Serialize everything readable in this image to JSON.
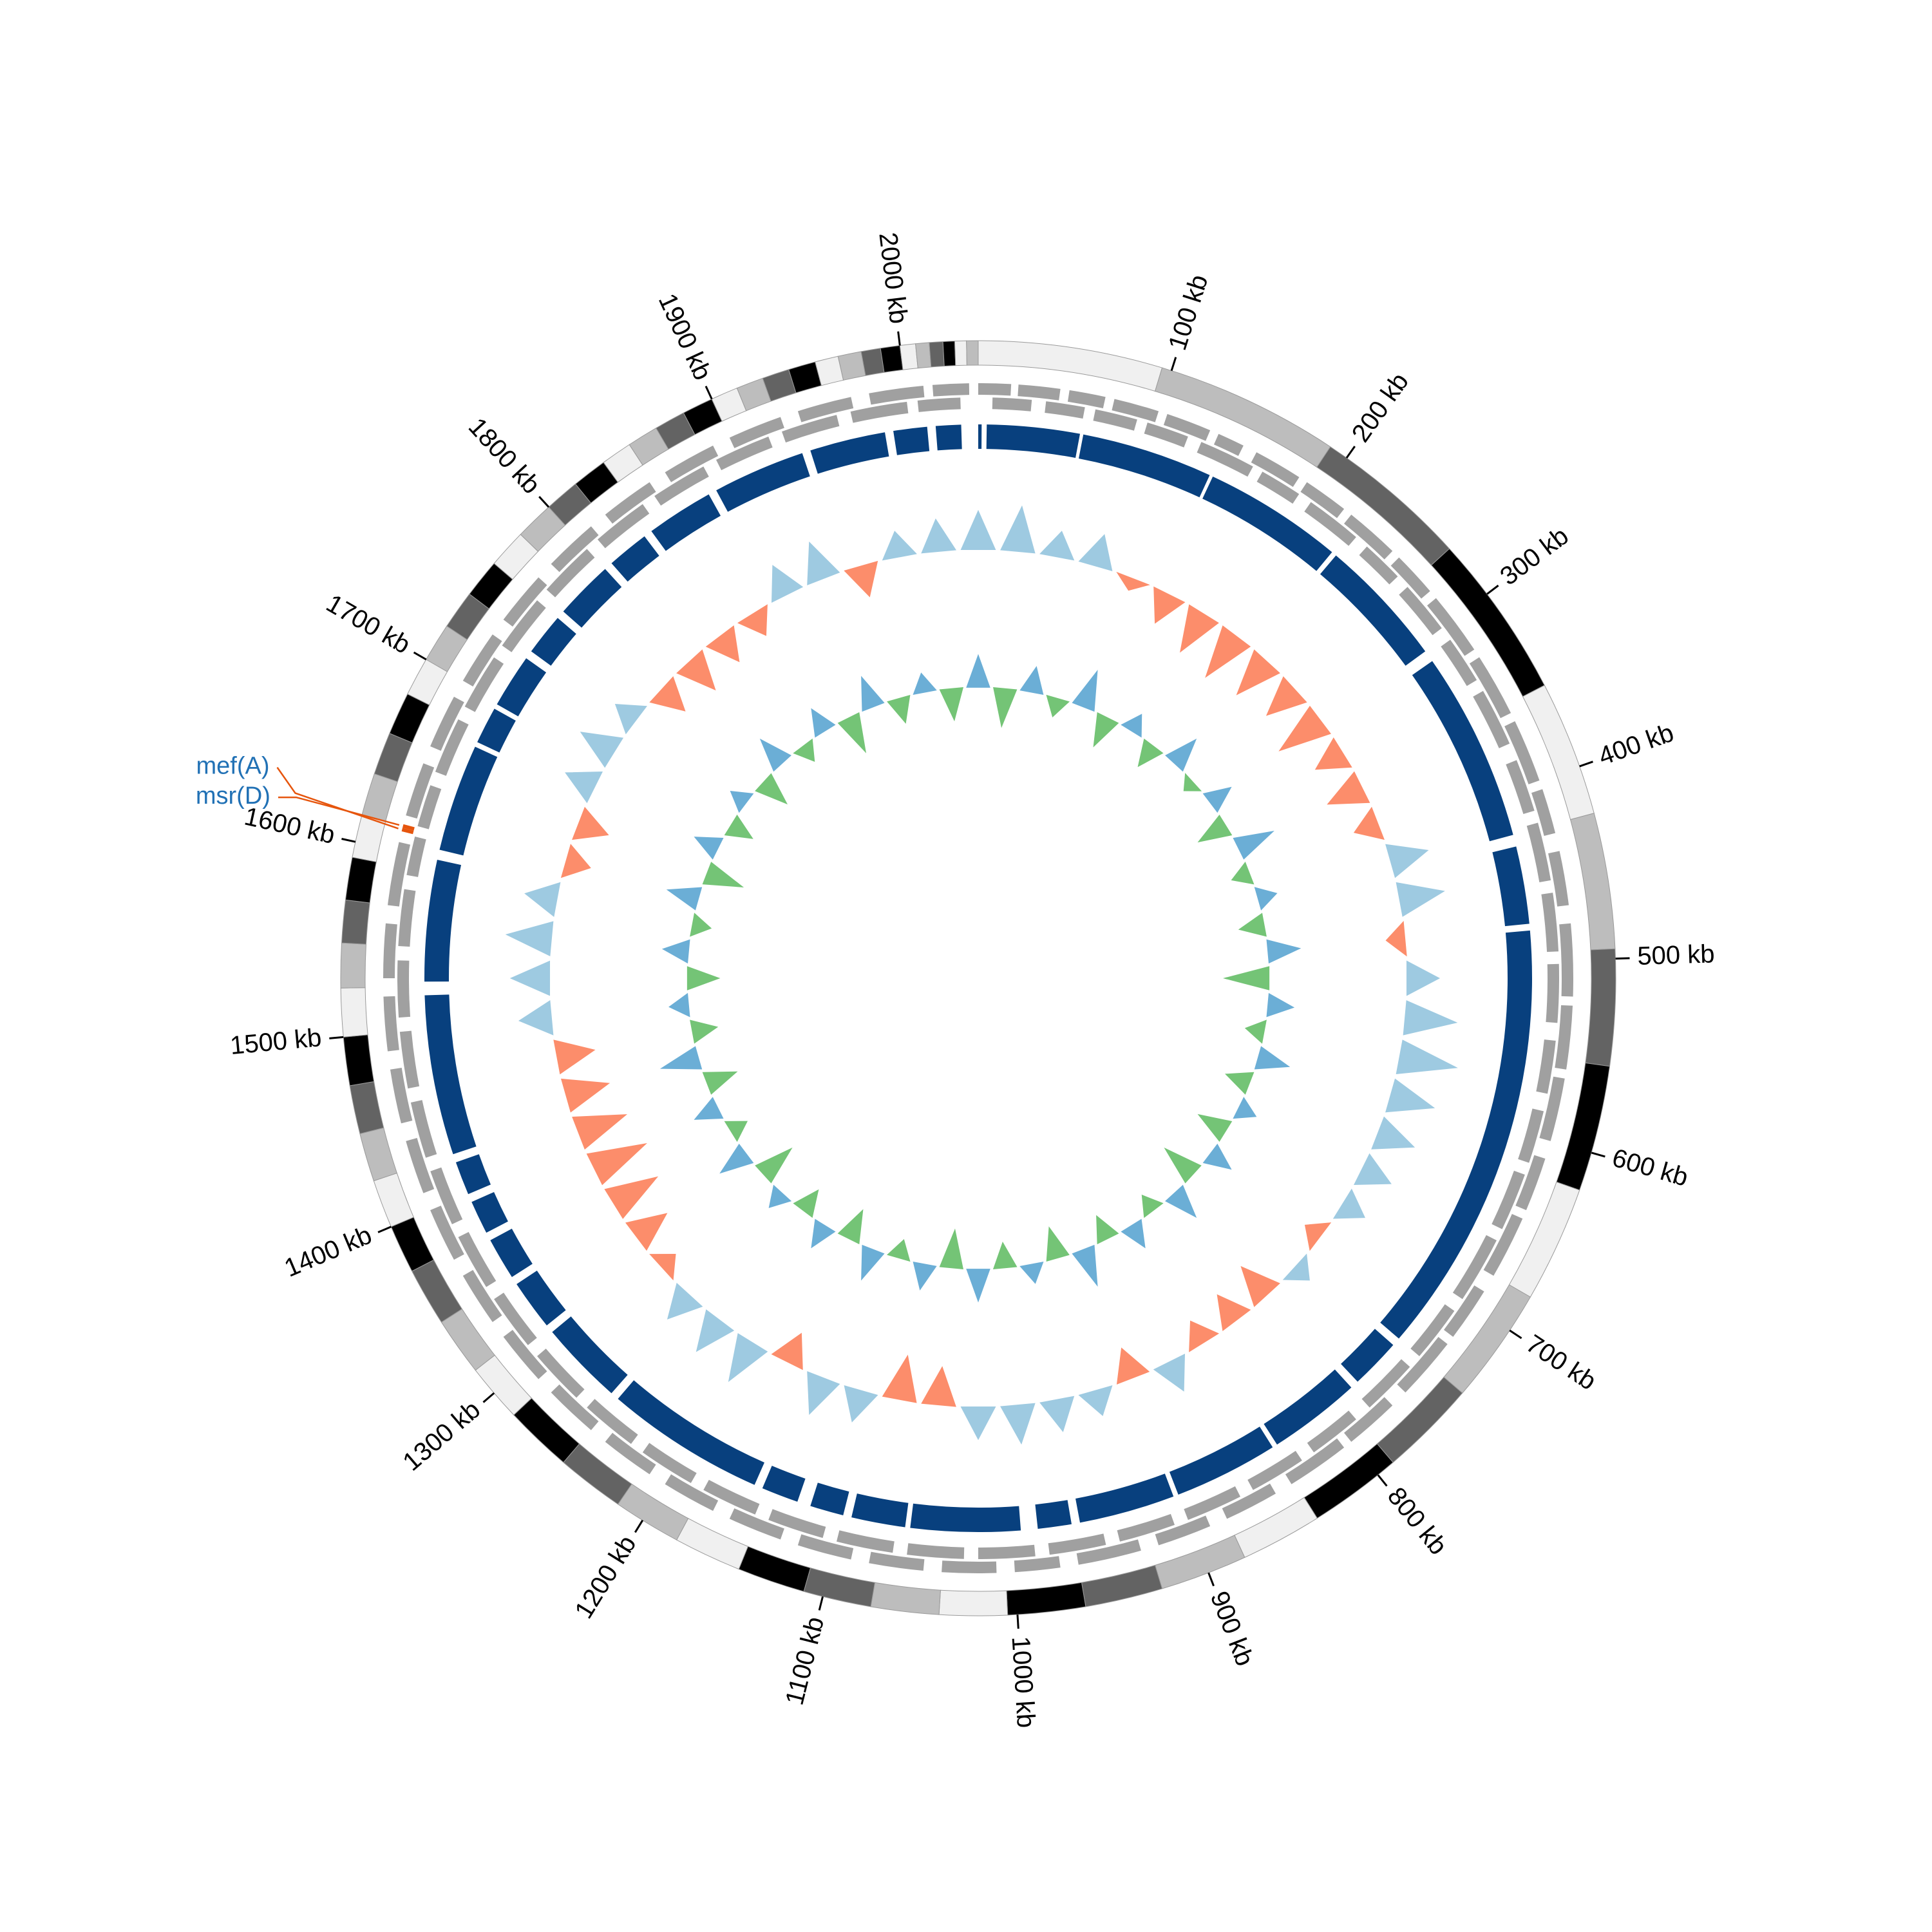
{
  "chart_data": {
    "type": "circular_genome",
    "xlim": [
      0,
      2040
    ],
    "xticks": [
      {
        "value": 100,
        "label": "100 kb"
      },
      {
        "value": 200,
        "label": "200 kb"
      },
      {
        "value": 300,
        "label": "300 kb"
      },
      {
        "value": 400,
        "label": "400 kb"
      },
      {
        "value": 500,
        "label": "500 kb"
      },
      {
        "value": 600,
        "label": "600 kb"
      },
      {
        "value": 700,
        "label": "700 kb"
      },
      {
        "value": 800,
        "label": "800 kb"
      },
      {
        "value": 900,
        "label": "900 kb"
      },
      {
        "value": 1000,
        "label": "1000 kb"
      },
      {
        "value": 1100,
        "label": "1100 kb"
      },
      {
        "value": 1200,
        "label": "1200 kb"
      },
      {
        "value": 1300,
        "label": "1300 kb"
      },
      {
        "value": 1400,
        "label": "1400 kb"
      },
      {
        "value": 1500,
        "label": "1500 kb"
      },
      {
        "value": 1600,
        "label": "1600 kb"
      },
      {
        "value": 1700,
        "label": "1700 kb"
      },
      {
        "value": 1800,
        "label": "1800 kb"
      },
      {
        "value": 1900,
        "label": "1900 kb"
      },
      {
        "value": 2000,
        "label": "2000 kb"
      }
    ],
    "contigs": {
      "ends": [
        95,
        190,
        270,
        355,
        425,
        495,
        555,
        620,
        680,
        740,
        790,
        838,
        880,
        925,
        965,
        1005,
        1040,
        1075,
        1110,
        1145,
        1180,
        1215,
        1250,
        1285,
        1315,
        1345,
        1375,
        1400,
        1425,
        1450,
        1475,
        1500,
        1525,
        1548,
        1570,
        1592,
        1614,
        1636,
        1658,
        1680,
        1700,
        1720,
        1740,
        1760,
        1780,
        1800,
        1818,
        1836,
        1852,
        1868,
        1884,
        1900,
        1914,
        1928,
        1942,
        1956,
        1968,
        1980,
        1990,
        2000,
        2008,
        2015,
        2022,
        2028,
        2034,
        2040
      ],
      "colors": [
        "#f0f0f0",
        "#bdbdbd",
        "#636363",
        "#000000"
      ]
    },
    "genes": {
      "color": "#a0a0a0",
      "forward": [
        [
          0,
          18
        ],
        [
          22,
          45
        ],
        [
          50,
          70
        ],
        [
          75,
          100
        ],
        [
          105,
          130
        ],
        [
          135,
          150
        ],
        [
          158,
          185
        ],
        [
          190,
          215
        ],
        [
          220,
          250
        ],
        [
          255,
          280
        ],
        [
          285,
          320
        ],
        [
          325,
          360
        ],
        [
          365,
          400
        ],
        [
          405,
          430
        ],
        [
          440,
          470
        ],
        [
          480,
          520
        ],
        [
          525,
          560
        ],
        [
          565,
          600
        ],
        [
          610,
          640
        ],
        [
          645,
          680
        ],
        [
          690,
          720
        ],
        [
          725,
          760
        ],
        [
          770,
          800
        ],
        [
          805,
          840
        ],
        [
          850,
          880
        ],
        [
          890,
          920
        ],
        [
          930,
          965
        ],
        [
          975,
          1000
        ],
        [
          1010,
          1040
        ],
        [
          1050,
          1080
        ],
        [
          1090,
          1120
        ],
        [
          1130,
          1160
        ],
        [
          1170,
          1200
        ],
        [
          1210,
          1240
        ],
        [
          1250,
          1280
        ],
        [
          1290,
          1320
        ],
        [
          1330,
          1360
        ],
        [
          1370,
          1400
        ],
        [
          1410,
          1440
        ],
        [
          1450,
          1480
        ],
        [
          1490,
          1520
        ],
        [
          1530,
          1560
        ],
        [
          1570,
          1605
        ],
        [
          1620,
          1650
        ],
        [
          1660,
          1690
        ],
        [
          1700,
          1730
        ],
        [
          1740,
          1770
        ],
        [
          1780,
          1810
        ],
        [
          1820,
          1850
        ],
        [
          1860,
          1890
        ],
        [
          1900,
          1930
        ],
        [
          1940,
          1970
        ],
        [
          1980,
          2010
        ],
        [
          2015,
          2035
        ]
      ],
      "reverse": [
        [
          8,
          30
        ],
        [
          38,
          60
        ],
        [
          66,
          90
        ],
        [
          96,
          120
        ],
        [
          128,
          160
        ],
        [
          166,
          190
        ],
        [
          198,
          230
        ],
        [
          238,
          262
        ],
        [
          270,
          300
        ],
        [
          308,
          335
        ],
        [
          342,
          375
        ],
        [
          385,
          415
        ],
        [
          422,
          455
        ],
        [
          462,
          495
        ],
        [
          502,
          535
        ],
        [
          545,
          575
        ],
        [
          585,
          615
        ],
        [
          622,
          655
        ],
        [
          662,
          700
        ],
        [
          708,
          740
        ],
        [
          748,
          780
        ],
        [
          790,
          820
        ],
        [
          828,
          860
        ],
        [
          868,
          900
        ],
        [
          908,
          940
        ],
        [
          948,
          980
        ],
        [
          988,
          1020
        ],
        [
          1028,
          1060
        ],
        [
          1068,
          1100
        ],
        [
          1108,
          1140
        ],
        [
          1148,
          1180
        ],
        [
          1188,
          1220
        ],
        [
          1228,
          1260
        ],
        [
          1268,
          1300
        ],
        [
          1308,
          1340
        ],
        [
          1348,
          1380
        ],
        [
          1388,
          1420
        ],
        [
          1428,
          1460
        ],
        [
          1468,
          1500
        ],
        [
          1508,
          1540
        ],
        [
          1548,
          1580
        ],
        [
          1588,
          1610
        ],
        [
          1616,
          1640
        ],
        [
          1648,
          1680
        ],
        [
          1688,
          1720
        ],
        [
          1728,
          1760
        ],
        [
          1768,
          1800
        ],
        [
          1808,
          1840
        ],
        [
          1848,
          1880
        ],
        [
          1888,
          1920
        ],
        [
          1928,
          1960
        ],
        [
          1968,
          2000
        ],
        [
          2006,
          2030
        ]
      ]
    },
    "annotations": {
      "line_color": "#e6550d",
      "label_color": "#2171b5",
      "items": [
        {
          "label": "mef(A)",
          "start": 1611,
          "end": 1613
        },
        {
          "label": "msr(D)",
          "start": 1613,
          "end": 1615
        }
      ]
    },
    "hits": {
      "color": "#08407e",
      "intervals": [
        [
          0,
          2
        ],
        [
          5,
          60
        ],
        [
          62,
          140
        ],
        [
          142,
          225
        ],
        [
          228,
          305
        ],
        [
          312,
          425
        ],
        [
          432,
          478
        ],
        [
          482,
          740
        ],
        [
          745,
          775
        ],
        [
          780,
          835
        ],
        [
          838,
          900
        ],
        [
          903,
          960
        ],
        [
          965,
          985
        ],
        [
          995,
          1060
        ],
        [
          1063,
          1095
        ],
        [
          1100,
          1120
        ],
        [
          1128,
          1150
        ],
        [
          1155,
          1250
        ],
        [
          1255,
          1305
        ],
        [
          1310,
          1340
        ],
        [
          1345,
          1370
        ],
        [
          1375,
          1395
        ],
        [
          1400,
          1420
        ],
        [
          1425,
          1520
        ],
        [
          1528,
          1600
        ],
        [
          1606,
          1670
        ],
        [
          1673,
          1695
        ],
        [
          1698,
          1730
        ],
        [
          1735,
          1760
        ],
        [
          1765,
          1800
        ],
        [
          1805,
          1830
        ],
        [
          1835,
          1875
        ],
        [
          1880,
          1935
        ],
        [
          1940,
          1985
        ],
        [
          1990,
          2010
        ],
        [
          2015,
          2030
        ]
      ]
    },
    "x": [
      0,
      30,
      60,
      90,
      120,
      150,
      180,
      210,
      240,
      270,
      300,
      330,
      360,
      390,
      420,
      450,
      480,
      510,
      540,
      570,
      600,
      630,
      660,
      690,
      720,
      750,
      780,
      810,
      840,
      870,
      900,
      930,
      960,
      990,
      1020,
      1050,
      1080,
      1110,
      1140,
      1170,
      1200,
      1230,
      1260,
      1290,
      1320,
      1350,
      1380,
      1410,
      1440,
      1470,
      1500,
      1530,
      1560,
      1590,
      1620,
      1650,
      1680,
      1710,
      1740,
      1770,
      1800,
      1830,
      1860,
      1890,
      1920,
      1950,
      1980,
      2010
    ],
    "gc_skew": {
      "pos_color": "#9ecae1",
      "neg_color": "#fc8d6b",
      "values": [
        0.06,
        0.07,
        0.04,
        0.05,
        -0.02,
        -0.05,
        -0.07,
        -0.08,
        -0.07,
        -0.06,
        -0.08,
        -0.05,
        -0.06,
        -0.04,
        0.06,
        0.07,
        -0.03,
        0.05,
        0.08,
        0.09,
        0.07,
        0.06,
        0.05,
        0.04,
        -0.03,
        0.03,
        -0.06,
        -0.05,
        -0.04,
        0.05,
        -0.05,
        0.04,
        0.05,
        0.06,
        0.05,
        -0.06,
        -0.07,
        0.05,
        0.06,
        -0.05,
        0.07,
        0.06,
        0.05,
        -0.03,
        -0.06,
        -0.08,
        -0.09,
        -0.08,
        -0.07,
        -0.06,
        0.05,
        0.06,
        0.07,
        0.05,
        -0.04,
        -0.05,
        0.05,
        0.06,
        0.04,
        -0.05,
        -0.06,
        -0.05,
        -0.04,
        0.05,
        0.06,
        -0.05,
        0.04,
        0.05
      ]
    },
    "gc_content": {
      "pos_color": "#6baed6",
      "neg_color": "#74c476",
      "values": [
        0.05,
        -0.06,
        0.04,
        -0.03,
        0.06,
        -0.05,
        0.03,
        -0.04,
        0.05,
        -0.02,
        0.04,
        -0.05,
        0.06,
        -0.03,
        0.03,
        -0.04,
        0.05,
        -0.07,
        0.04,
        -0.03,
        0.05,
        -0.04,
        0.03,
        -0.05,
        0.04,
        -0.06,
        0.05,
        -0.03,
        0.04,
        -0.04,
        0.06,
        -0.05,
        0.03,
        -0.04,
        0.05,
        -0.06,
        0.04,
        -0.03,
        0.05,
        -0.05,
        0.04,
        -0.04,
        0.03,
        -0.06,
        0.05,
        -0.03,
        0.04,
        -0.05,
        0.06,
        -0.04,
        0.03,
        -0.05,
        0.04,
        -0.03,
        0.05,
        -0.06,
        0.04,
        -0.04,
        0.03,
        -0.05,
        0.05,
        -0.03,
        0.04,
        -0.06,
        0.05,
        -0.04,
        0.03,
        -0.05
      ]
    }
  }
}
